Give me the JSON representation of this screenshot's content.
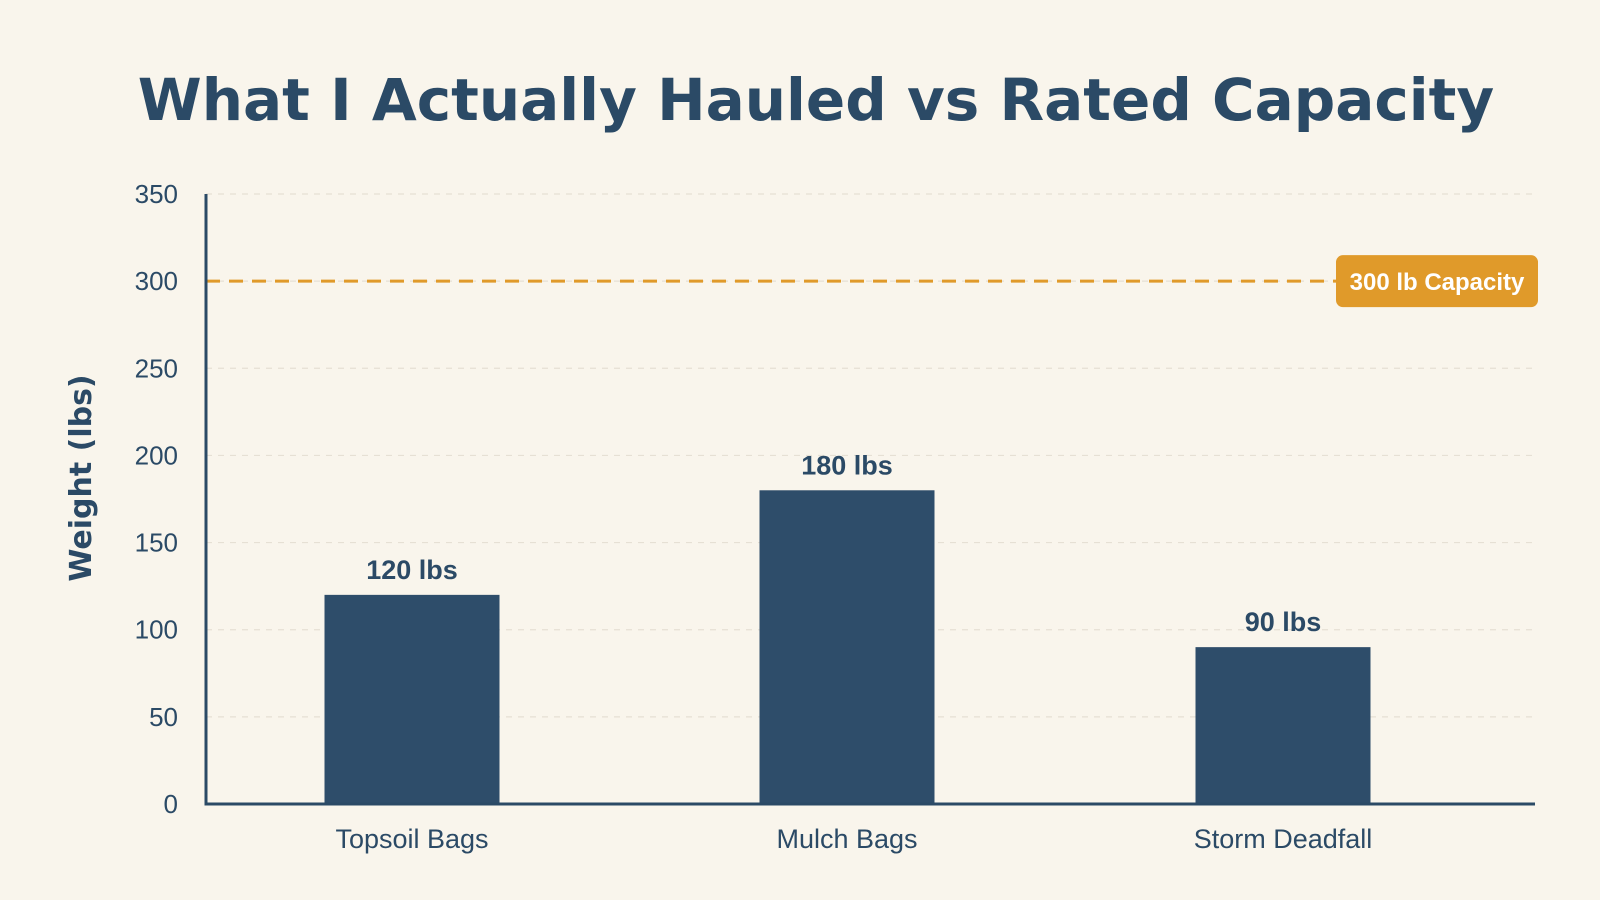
{
  "chart_data": {
    "type": "bar",
    "title": "What I Actually Hauled vs Rated Capacity",
    "xlabel": "",
    "ylabel": "Weight (lbs)",
    "categories": [
      "Topsoil Bags",
      "Mulch Bags",
      "Storm Deadfall"
    ],
    "values": [
      120,
      180,
      90
    ],
    "value_labels": [
      "120 lbs",
      "180 lbs",
      "90 lbs"
    ],
    "ylim": [
      0,
      350
    ],
    "yticks": [
      0,
      50,
      100,
      150,
      200,
      250,
      300,
      350
    ],
    "grid": true,
    "reference_line": {
      "value": 300,
      "label": "300 lb Capacity",
      "color": "#e09a2a"
    },
    "colors": {
      "bar": "#2e4d6a",
      "text": "#2b4a66",
      "background": "#f9f5ec"
    }
  }
}
